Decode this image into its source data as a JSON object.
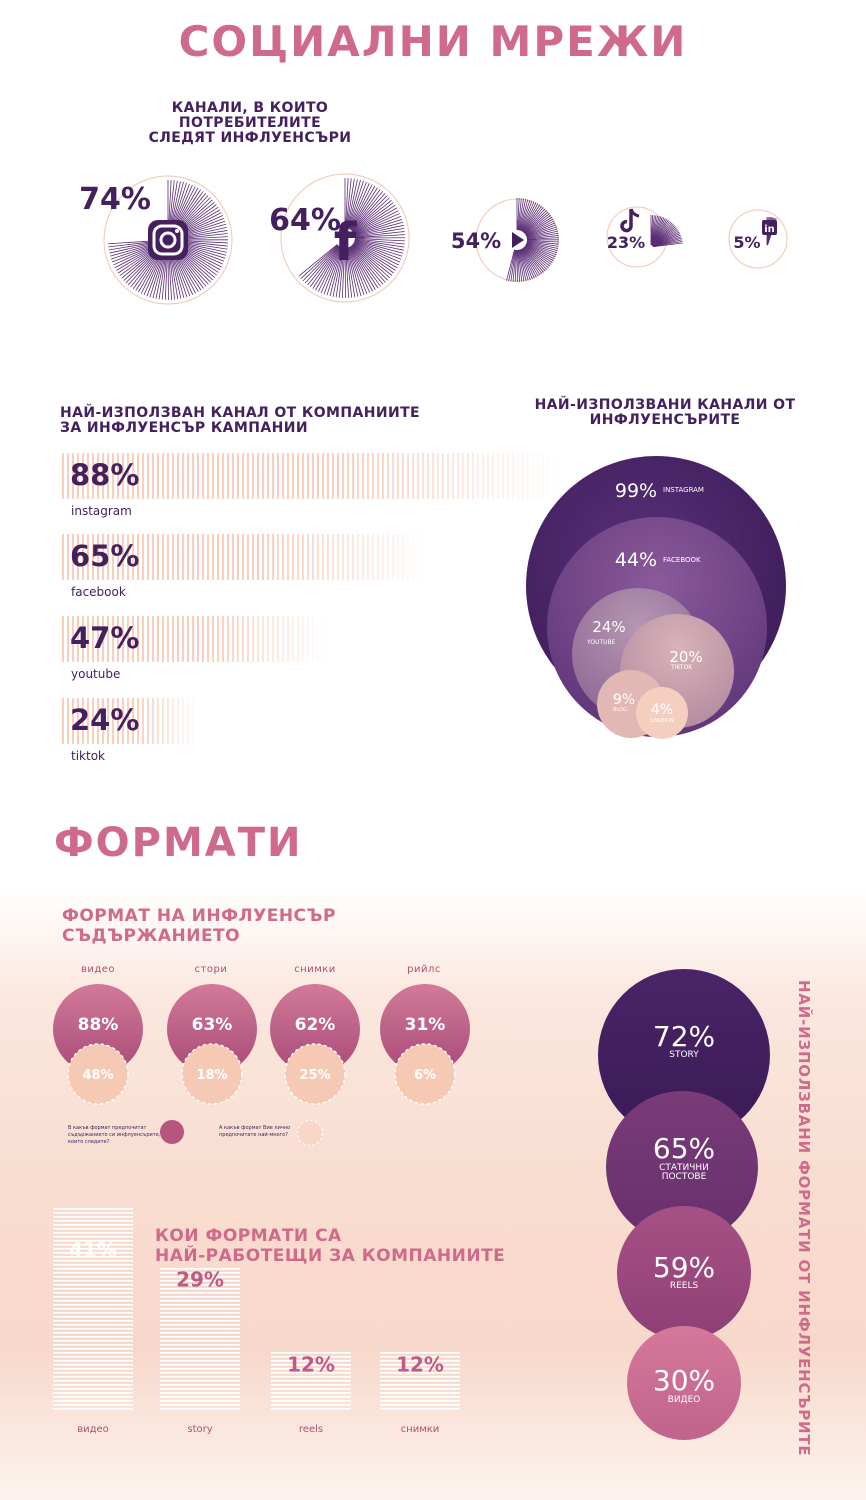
{
  "title": "СОЦИАЛНИ МРЕЖИ",
  "section1": {
    "header": [
      "КАНАЛИ, В КОИТО ПОТРЕБИТЕЛИТЕ",
      "СЛЕДЯТ ИНФЛУЕНСЪРИ"
    ],
    "items": [
      {
        "pct": "74%",
        "icon": "instagram-icon"
      },
      {
        "pct": "64%",
        "icon": "facebook-icon"
      },
      {
        "pct": "54%",
        "icon": "youtube-icon"
      },
      {
        "pct": "23%",
        "icon": "tiktok-icon"
      },
      {
        "pct": "5%",
        "icon": "linkedin-icon"
      }
    ]
  },
  "section2": {
    "header": [
      "НАЙ-ИЗПОЛЗВАН КАНАЛ ОТ КОМПАНИИТЕ",
      "ЗА ИНФЛУЕНСЪР КАМПАНИИ"
    ],
    "bars": [
      {
        "pct": "88%",
        "label": "instagram"
      },
      {
        "pct": "65%",
        "label": "facebook"
      },
      {
        "pct": "47%",
        "label": "youtube"
      },
      {
        "pct": "24%",
        "label": "tiktok"
      }
    ]
  },
  "section3": {
    "header": [
      "НАЙ-ИЗПОЛЗВАНИ КАНАЛИ ОТ",
      "ИНФЛУЕНСЪРИТЕ"
    ],
    "circles": [
      {
        "pct": "99%",
        "label": "INSTAGRAM"
      },
      {
        "pct": "44%",
        "label": "FACEBOOK"
      },
      {
        "pct": "24%",
        "label": "YOUTUBE"
      },
      {
        "pct": "20%",
        "label": "TIKTOK"
      },
      {
        "pct": "9%",
        "label": "BLOG"
      },
      {
        "pct": "4%",
        "label": "LINKEDIN"
      }
    ]
  },
  "formats_title": "ФОРМАТИ",
  "section4": {
    "header": [
      "ФОРМАТ НА ИНФЛУЕНСЪР",
      "СЪДЪРЖАНИЕТО"
    ],
    "items": [
      {
        "label": "видео",
        "top": "88%",
        "bottom": "48%"
      },
      {
        "label": "стори",
        "top": "63%",
        "bottom": "18%"
      },
      {
        "label": "снимки",
        "top": "62%",
        "bottom": "25%"
      },
      {
        "label": "рийлс",
        "top": "31%",
        "bottom": "6%"
      }
    ],
    "legend_filled": [
      "В какъв формат предпочитат",
      "съдържанието си инфлуенсърите,",
      "които следите?"
    ],
    "legend_dashed": [
      "А какъв формат Вие лично",
      "предпочитате най-много?"
    ]
  },
  "section5": {
    "header": [
      "КОИ ФОРМАТИ СА",
      "НАЙ-РАБОТЕЩИ ЗА КОМПАНИИТЕ"
    ],
    "bars": [
      {
        "pct": "41%",
        "label": "видео"
      },
      {
        "pct": "29%",
        "label": "story"
      },
      {
        "pct": "12%",
        "label": "reels"
      },
      {
        "pct": "12%",
        "label": "снимки"
      }
    ]
  },
  "section6": {
    "header": "НАЙ-ИЗПОЛЗВАНИ ФОРМАТИ ОТ ИНФЛУЕНСЪРИТЕ",
    "circles": [
      {
        "pct": "72%",
        "label": [
          "STORY"
        ]
      },
      {
        "pct": "65%",
        "label": [
          "СТАТИЧНИ",
          "ПОСТОВЕ"
        ]
      },
      {
        "pct": "59%",
        "label": [
          "REELS"
        ]
      },
      {
        "pct": "30%",
        "label": [
          "ВИДЕО"
        ]
      }
    ]
  },
  "colors": {
    "purple": "#44205e",
    "pink": "#cf6a8a",
    "peach": "#f7c9b5",
    "magenta": "#b34f76"
  },
  "chart_data": [
    {
      "type": "radial",
      "title": "КАНАЛИ, В КОИТО ПОТРЕБИТЕЛИТЕ СЛЕДЯТ ИНФЛУЕНСЪРИ",
      "categories": [
        "instagram",
        "facebook",
        "youtube",
        "tiktok",
        "linkedin"
      ],
      "values": [
        74,
        64,
        54,
        23,
        5
      ]
    },
    {
      "type": "bar",
      "title": "НАЙ-ИЗПОЛЗВАН КАНАЛ ОТ КОМПАНИИТЕ ЗА ИНФЛУЕНСЪР КАМПАНИИ",
      "categories": [
        "instagram",
        "facebook",
        "youtube",
        "tiktok"
      ],
      "values": [
        88,
        65,
        47,
        24
      ]
    },
    {
      "type": "bubble",
      "title": "НАЙ-ИЗПОЛЗВАНИ КАНАЛИ ОТ ИНФЛУЕНСЪРИТЕ",
      "categories": [
        "INSTAGRAM",
        "FACEBOOK",
        "YOUTUBE",
        "TIKTOK",
        "BLOG",
        "LINKEDIN"
      ],
      "values": [
        99,
        44,
        24,
        20,
        9,
        4
      ]
    },
    {
      "type": "bubble",
      "title": "ФОРМАТ НА ИНФЛУЕНСЪР СЪДЪРЖАНИЕТО",
      "categories": [
        "видео",
        "стори",
        "снимки",
        "рийлс"
      ],
      "series": [
        {
          "values": [
            88,
            63,
            62,
            31
          ]
        },
        {
          "values": [
            48,
            18,
            25,
            6
          ]
        }
      ]
    },
    {
      "type": "bar",
      "title": "КОИ ФОРМАТИ СА НАЙ-РАБОТЕЩИ ЗА КОМПАНИИТЕ",
      "categories": [
        "видео",
        "story",
        "reels",
        "снимки"
      ],
      "values": [
        41,
        29,
        12,
        12
      ]
    },
    {
      "type": "bubble",
      "title": "НАЙ-ИЗПОЛЗВАНИ ФОРМАТИ ОТ ИНФЛУЕНСЪРИТЕ",
      "categories": [
        "STORY",
        "СТАТИЧНИ ПОСТОВЕ",
        "REELS",
        "ВИДЕО"
      ],
      "values": [
        72,
        65,
        59,
        30
      ]
    }
  ]
}
